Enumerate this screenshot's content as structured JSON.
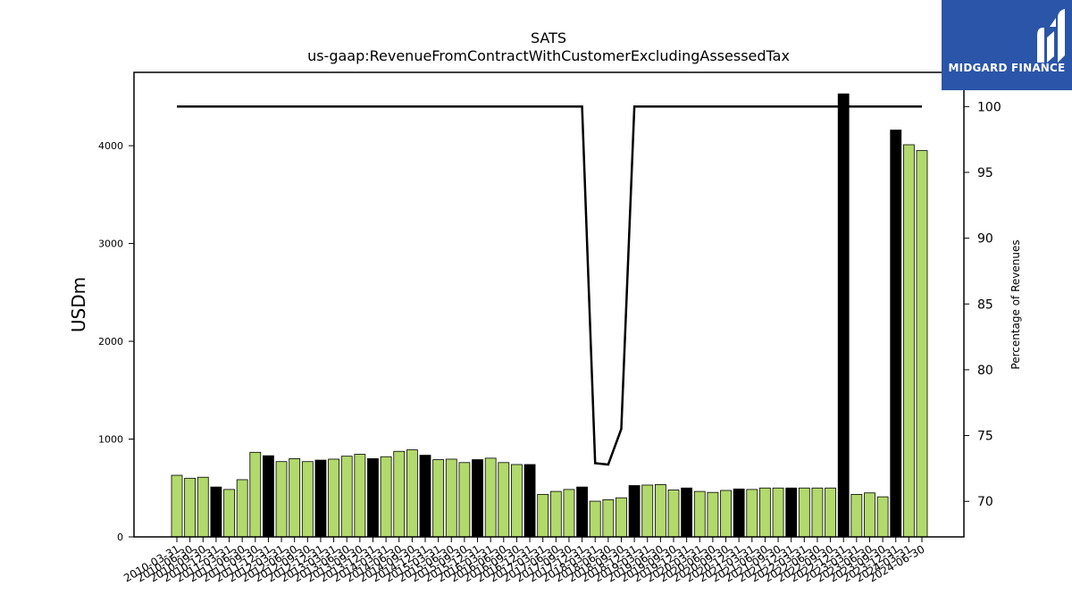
{
  "chart_data": {
    "type": "bar",
    "title": "SATS",
    "subtitle": "us-gaap:RevenueFromContractWithCustomerExcludingAssessedTax",
    "ylabel": "USDm",
    "y2label": "Percentage of Revenues",
    "ylim": [
      0,
      4750
    ],
    "y2lim": [
      67.3,
      102.6
    ],
    "yticks": [
      0,
      1000,
      2000,
      3000,
      4000
    ],
    "y2ticks": [
      70,
      75,
      80,
      85,
      90,
      95,
      100
    ],
    "grid": false,
    "categories": [
      "2010-03-31",
      "2010-06-30",
      "2010-09-30",
      "2010-12-31",
      "2011-03-31",
      "2011-06-30",
      "2011-09-30",
      "2011-12-31",
      "2012-03-31",
      "2012-06-30",
      "2012-09-30",
      "2012-12-31",
      "2013-03-31",
      "2013-06-30",
      "2013-09-30",
      "2013-12-31",
      "2014-03-31",
      "2014-06-30",
      "2014-09-30",
      "2014-12-31",
      "2015-03-31",
      "2015-06-30",
      "2015-09-30",
      "2015-12-31",
      "2016-03-31",
      "2016-06-30",
      "2016-09-30",
      "2016-12-31",
      "2017-03-31",
      "2017-06-30",
      "2017-09-30",
      "2017-12-31",
      "2018-03-31",
      "2018-06-30",
      "2018-09-30",
      "2018-12-31",
      "2019-03-31",
      "2019-06-30",
      "2019-09-30",
      "2019-12-31",
      "2020-03-31",
      "2020-06-30",
      "2020-09-30",
      "2020-12-31",
      "2021-03-31",
      "2021-06-30",
      "2021-09-30",
      "2021-12-31",
      "2022-03-31",
      "2022-06-30",
      "2022-09-30",
      "2022-12-31",
      "2023-03-31",
      "2023-06-30",
      "2023-09-30",
      "2023-12-31",
      "2024-03-31",
      "2024-06-30"
    ],
    "values": [
      630,
      600,
      610,
      510,
      485,
      585,
      865,
      830,
      770,
      800,
      770,
      785,
      795,
      825,
      845,
      800,
      820,
      875,
      890,
      835,
      790,
      795,
      760,
      790,
      805,
      760,
      740,
      740,
      435,
      465,
      485,
      510,
      365,
      380,
      400,
      525,
      530,
      535,
      480,
      500,
      465,
      455,
      475,
      490,
      485,
      500,
      500,
      500,
      500,
      500,
      500,
      4530,
      435,
      450,
      410,
      4160,
      4010,
      3950
    ],
    "annual": [
      false,
      false,
      false,
      true,
      false,
      false,
      false,
      true,
      false,
      false,
      false,
      true,
      false,
      false,
      false,
      true,
      false,
      false,
      false,
      true,
      false,
      false,
      false,
      true,
      false,
      false,
      false,
      true,
      false,
      false,
      false,
      true,
      false,
      false,
      false,
      true,
      false,
      false,
      false,
      true,
      false,
      false,
      false,
      true,
      false,
      false,
      false,
      true,
      false,
      false,
      false,
      true,
      false,
      false,
      false,
      true,
      false,
      false
    ],
    "percentage_of_revenues": [
      100,
      100,
      100,
      100,
      100,
      100,
      100,
      100,
      100,
      100,
      100,
      100,
      100,
      100,
      100,
      100,
      100,
      100,
      100,
      100,
      100,
      100,
      100,
      100,
      100,
      100,
      100,
      100,
      100,
      100,
      100,
      100,
      72.9,
      72.8,
      75.5,
      100,
      100,
      100,
      100,
      100,
      100,
      100,
      100,
      100,
      100,
      100,
      100,
      100,
      100,
      100,
      100,
      100,
      100,
      100,
      100,
      100,
      100,
      100
    ],
    "colors": {
      "quarter": "#b2d96b",
      "annual": "#000000",
      "line": "#000000"
    }
  },
  "logo": {
    "text": "MIDGARD FINANCE",
    "background": "#2a55a8"
  }
}
